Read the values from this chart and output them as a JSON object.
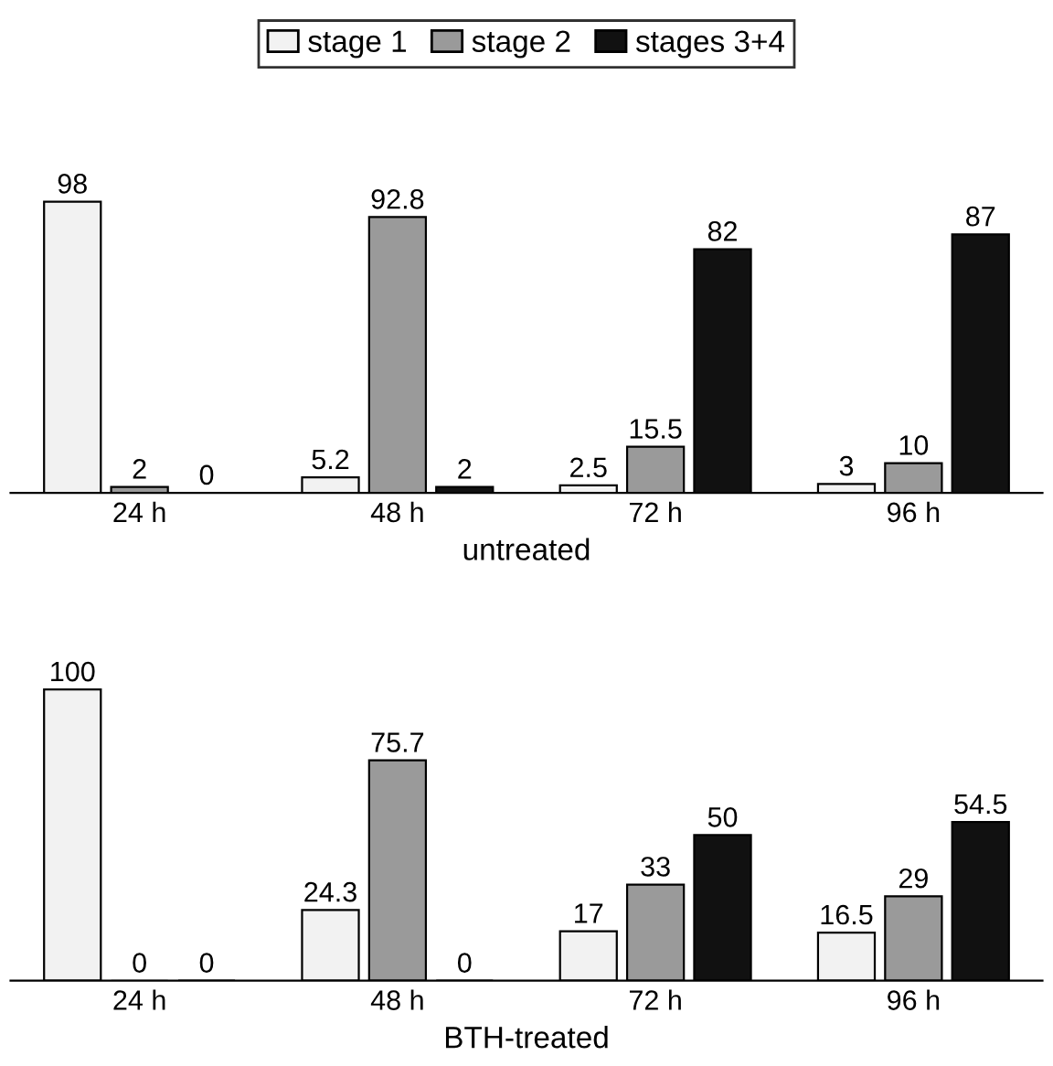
{
  "chart_data": [
    {
      "type": "bar",
      "xlabel": "untreated",
      "categories": [
        "24 h",
        "48 h",
        "72 h",
        "96 h"
      ],
      "data_labels": true,
      "legend": "top",
      "grid": false,
      "series": [
        {
          "name": "stage 1",
          "color": "#f2f2f2",
          "values": [
            98,
            5.2,
            2.5,
            3
          ]
        },
        {
          "name": "stage 2",
          "color": "#9a9a9a",
          "values": [
            2,
            92.8,
            15.5,
            10
          ]
        },
        {
          "name": "stages 3+4",
          "color": "#111111",
          "values": [
            0,
            2,
            82,
            87
          ]
        }
      ]
    },
    {
      "type": "bar",
      "xlabel": "BTH-treated",
      "categories": [
        "24 h",
        "48 h",
        "72 h",
        "96 h"
      ],
      "data_labels": true,
      "grid": false,
      "series": [
        {
          "color": "#f2f2f2",
          "values": [
            100,
            24.3,
            17,
            16.5
          ]
        },
        {
          "color": "#9a9a9a",
          "values": [
            0,
            75.7,
            33,
            29
          ]
        },
        {
          "color": "#111111",
          "values": [
            0,
            0,
            50,
            54.5
          ]
        }
      ]
    }
  ]
}
